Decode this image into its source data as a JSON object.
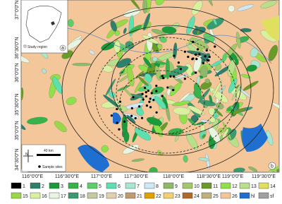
{
  "map": {
    "latitude_labels": [
      "37°0'0\"N",
      "36°30'0\"N",
      "36°0'0\"N",
      "35°30'0\"N",
      "35°0'0\"N",
      "34°30'0\"N"
    ],
    "longitude_labels": [
      "116°0'0\"E",
      "116°30'0\"E",
      "117°0'0\"E",
      "117°30'0\"E",
      "118°0'0\"E",
      "118°30'0\"E",
      "119°0'0\"E",
      "119°30'0\"E"
    ],
    "inset": {
      "label": "Study region",
      "panel": "a"
    },
    "panel": "b",
    "scale_bar": "40 km",
    "north": "N",
    "sample_sites": "Sample sites",
    "legend": [
      {
        "label": "1",
        "color": "#000000"
      },
      {
        "label": "2",
        "color": "#2f7f6a"
      },
      {
        "label": "3",
        "color": "#1a9a3a"
      },
      {
        "label": "4",
        "color": "#37b34a"
      },
      {
        "label": "5",
        "color": "#5ccf6a"
      },
      {
        "label": "6",
        "color": "#5ce0b0"
      },
      {
        "label": "7",
        "color": "#a8e6cf"
      },
      {
        "label": "8",
        "color": "#cfe8f5"
      },
      {
        "label": "9",
        "color": "#8fb96a"
      },
      {
        "label": "10",
        "color": "#a3c86b"
      },
      {
        "label": "11",
        "color": "#6a9a2a"
      },
      {
        "label": "12",
        "color": "#8fe04a"
      },
      {
        "label": "13",
        "color": "#b8e08a"
      },
      {
        "label": "14",
        "color": "#e0e060"
      },
      {
        "label": "15",
        "color": "#9ad84a"
      },
      {
        "label": "16",
        "color": "#d8f0a0"
      },
      {
        "label": "17",
        "color": "#e8f5e0"
      },
      {
        "label": "18",
        "color": "#3c9a70"
      },
      {
        "label": "19",
        "color": "#c8c8a0"
      },
      {
        "label": "20",
        "color": "#e0d0b0"
      },
      {
        "label": "21",
        "color": "#c09a70"
      },
      {
        "label": "22",
        "color": "#e0a000"
      },
      {
        "label": "23",
        "color": "#f0d070"
      },
      {
        "label": "24",
        "color": "#b06a2a"
      },
      {
        "label": "25",
        "color": "#c0b080"
      },
      {
        "label": "26",
        "color": "#f4c79a"
      },
      {
        "label": "hl",
        "color": "#1f6fd0"
      },
      {
        "label": "sf",
        "color": "#a0a0a0"
      }
    ]
  }
}
